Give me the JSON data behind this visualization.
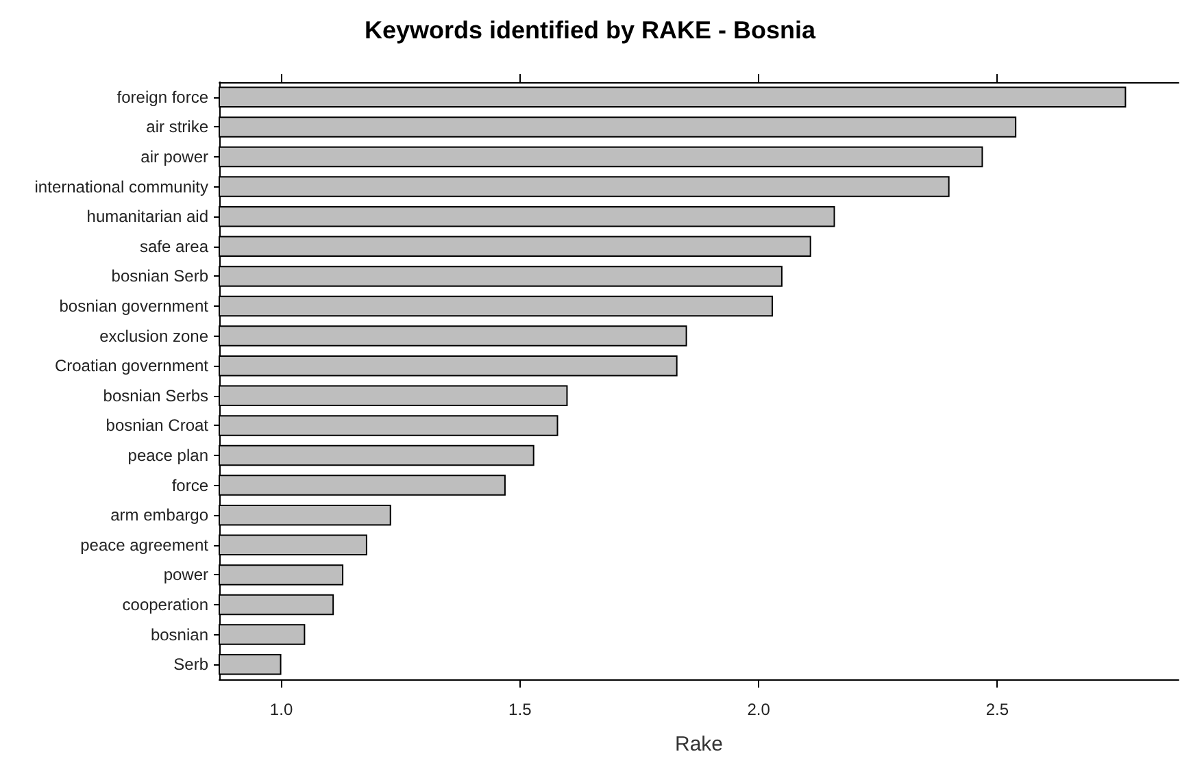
{
  "chart_data": {
    "type": "bar",
    "orientation": "horizontal",
    "title": "Keywords identified by RAKE - Bosnia",
    "xlabel": "Rake",
    "categories": [
      "foreign force",
      "air strike",
      "air power",
      "international community",
      "humanitarian aid",
      "safe area",
      "bosnian Serb",
      "bosnian government",
      "exclusion zone",
      "Croatian government",
      "bosnian Serbs",
      "bosnian Croat",
      "peace plan",
      "force",
      "arm embargo",
      "peace agreement",
      "power",
      "cooperation",
      "bosnian",
      "Serb"
    ],
    "values": [
      2.77,
      2.54,
      2.47,
      2.4,
      2.16,
      2.11,
      2.05,
      2.03,
      1.85,
      1.83,
      1.6,
      1.58,
      1.53,
      1.47,
      1.23,
      1.18,
      1.13,
      1.11,
      1.05,
      1.0
    ],
    "color": "#bebebe",
    "xlim": [
      0.87,
      2.88
    ],
    "xticks": [
      {
        "value": 1,
        "label": "1.0"
      },
      {
        "value": 1.5,
        "label": "1.5"
      },
      {
        "value": 2,
        "label": "2.0"
      },
      {
        "value": 2.5,
        "label": "2.5"
      }
    ],
    "grid": false
  }
}
